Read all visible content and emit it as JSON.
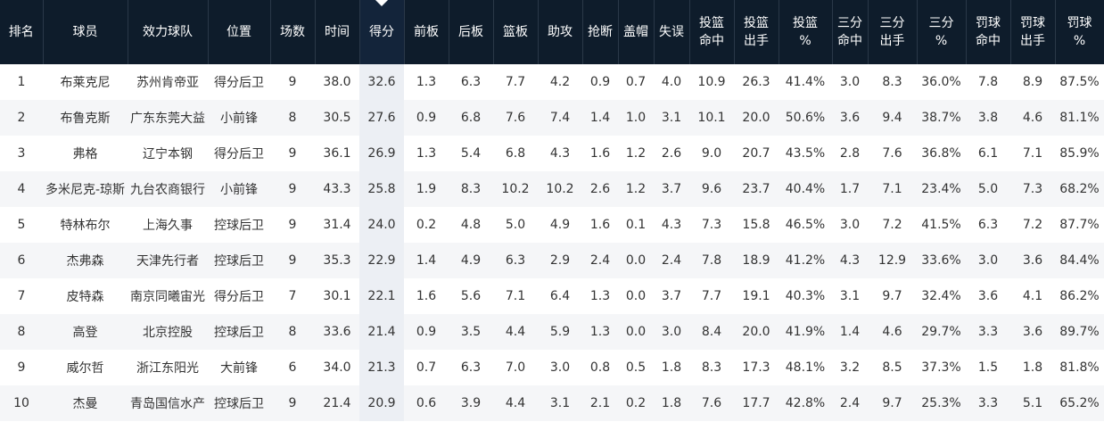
{
  "table": {
    "header": [
      "排名",
      "球员",
      "效力球队",
      "位置",
      "场数",
      "时间",
      "得分",
      "前板",
      "后板",
      "篮板",
      "助攻",
      "抢断",
      "盖帽",
      "失误",
      "投篮\n命中",
      "投篮\n出手",
      "投篮\n%",
      "三分\n命中",
      "三分\n出手",
      "三分\n%",
      "罚球\n命中",
      "罚球\n出手",
      "罚球\n%"
    ],
    "rows": [
      [
        "1",
        "布莱克尼",
        "苏州肯帝亚",
        "得分后卫",
        "9",
        "38.0",
        "32.6",
        "1.3",
        "6.3",
        "7.7",
        "4.2",
        "0.9",
        "0.7",
        "4.0",
        "10.9",
        "26.3",
        "41.4%",
        "3.0",
        "8.3",
        "36.0%",
        "7.8",
        "8.9",
        "87.5%"
      ],
      [
        "2",
        "布鲁克斯",
        "广东东莞大益",
        "小前锋",
        "8",
        "30.5",
        "27.6",
        "0.9",
        "6.8",
        "7.6",
        "7.4",
        "1.4",
        "1.0",
        "3.1",
        "10.1",
        "20.0",
        "50.6%",
        "3.6",
        "9.4",
        "38.7%",
        "3.8",
        "4.6",
        "81.1%"
      ],
      [
        "3",
        "弗格",
        "辽宁本钢",
        "得分后卫",
        "9",
        "36.1",
        "26.9",
        "1.3",
        "5.4",
        "6.8",
        "4.3",
        "1.6",
        "1.2",
        "2.6",
        "9.0",
        "20.7",
        "43.5%",
        "2.8",
        "7.6",
        "36.8%",
        "6.1",
        "7.1",
        "85.9%"
      ],
      [
        "4",
        "多米尼克-琼斯",
        "九台农商银行",
        "小前锋",
        "9",
        "43.3",
        "25.8",
        "1.9",
        "8.3",
        "10.2",
        "10.2",
        "2.6",
        "1.2",
        "3.7",
        "9.6",
        "23.7",
        "40.4%",
        "1.7",
        "7.1",
        "23.4%",
        "5.0",
        "7.3",
        "68.2%"
      ],
      [
        "5",
        "特林布尔",
        "上海久事",
        "控球后卫",
        "9",
        "31.4",
        "24.0",
        "0.2",
        "4.8",
        "5.0",
        "4.9",
        "1.6",
        "0.1",
        "4.3",
        "7.3",
        "15.8",
        "46.5%",
        "3.0",
        "7.2",
        "41.5%",
        "6.3",
        "7.2",
        "87.7%"
      ],
      [
        "6",
        "杰弗森",
        "天津先行者",
        "控球后卫",
        "9",
        "35.3",
        "22.9",
        "1.4",
        "4.9",
        "6.3",
        "2.9",
        "2.4",
        "0.0",
        "2.4",
        "7.8",
        "18.9",
        "41.2%",
        "4.3",
        "12.9",
        "33.6%",
        "3.0",
        "3.6",
        "84.4%"
      ],
      [
        "7",
        "皮特森",
        "南京同曦宙光",
        "得分后卫",
        "7",
        "30.1",
        "22.1",
        "1.6",
        "5.6",
        "7.1",
        "6.4",
        "1.3",
        "0.0",
        "3.7",
        "7.7",
        "19.1",
        "40.3%",
        "3.1",
        "9.7",
        "32.4%",
        "3.6",
        "4.1",
        "86.2%"
      ],
      [
        "8",
        "高登",
        "北京控股",
        "控球后卫",
        "8",
        "33.6",
        "21.4",
        "0.9",
        "3.5",
        "4.4",
        "5.9",
        "1.3",
        "0.0",
        "3.0",
        "8.4",
        "20.0",
        "41.9%",
        "1.4",
        "4.6",
        "29.7%",
        "3.3",
        "3.6",
        "89.7%"
      ],
      [
        "9",
        "威尔哲",
        "浙江东阳光",
        "大前锋",
        "6",
        "34.0",
        "21.3",
        "0.7",
        "6.3",
        "7.0",
        "3.0",
        "0.8",
        "0.5",
        "1.8",
        "8.3",
        "17.3",
        "48.1%",
        "3.2",
        "8.5",
        "37.3%",
        "1.5",
        "1.8",
        "81.8%"
      ],
      [
        "10",
        "杰曼",
        "青岛国信水产",
        "控球后卫",
        "9",
        "21.4",
        "20.9",
        "0.6",
        "3.9",
        "4.4",
        "3.1",
        "2.1",
        "0.2",
        "1.8",
        "7.6",
        "17.7",
        "42.8%",
        "2.4",
        "9.7",
        "25.3%",
        "3.3",
        "5.1",
        "65.2%"
      ]
    ]
  }
}
